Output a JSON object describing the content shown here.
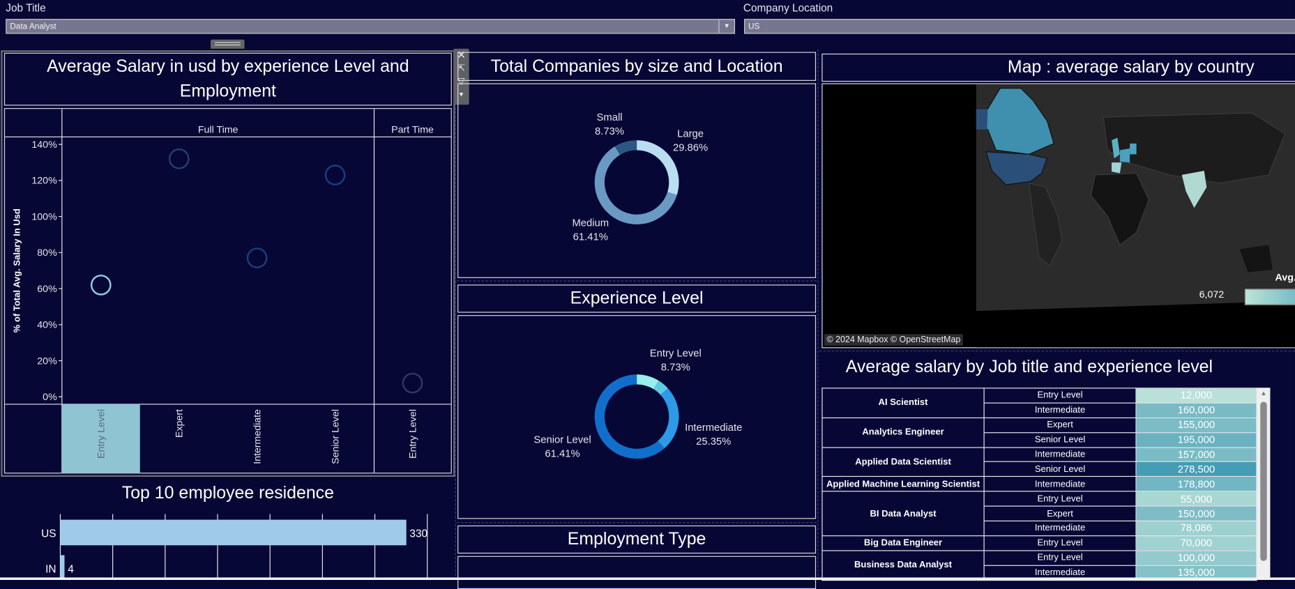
{
  "filters": {
    "job_title": {
      "label": "Job Title",
      "value": "Data Analyst"
    },
    "company_location": {
      "label": "Company Location",
      "value": "US"
    }
  },
  "toolbar": {
    "icons": [
      "close-icon",
      "popout-icon",
      "filter-icon",
      "more-dropdown-icon"
    ]
  },
  "panels": {
    "salary_title": "Average Salary in usd by experience Level and Employment",
    "companies_title": "Total Companies by size and Location",
    "experience_title": "Experience Level",
    "employment_title": "Employment Type",
    "residence_title": "Top 10 employee residence",
    "map_title": "Map : average salary by country",
    "table_title": "Average salary by Job title and experience level"
  },
  "map": {
    "attribution": "© 2024 Mapbox © OpenStreetMap",
    "legend_title": "Avg.",
    "legend_min": "6,072",
    "highlighted_countries": [
      "Canada",
      "United States",
      "United Kingdom",
      "France",
      "Germany",
      "Spain",
      "India"
    ]
  },
  "chart_data": [
    {
      "type": "scatter",
      "ylabel": "% of Total Avg. Salary In Usd",
      "ylim": [
        0,
        140
      ],
      "y_ticks": [
        "0%",
        "20%",
        "40%",
        "60%",
        "80%",
        "100%",
        "120%",
        "140%"
      ],
      "panes": [
        {
          "name": "Full Time",
          "categories": [
            "Entry Level",
            "Expert",
            "Intermediate",
            "Senior Level"
          ]
        },
        {
          "name": "Part Time",
          "categories": [
            "Entry Level"
          ]
        }
      ],
      "points": [
        {
          "pane": "Full Time",
          "x": "Entry Level",
          "y": 62,
          "color": "#8fd3df"
        },
        {
          "pane": "Full Time",
          "x": "Expert",
          "y": 132,
          "color": "#26406e"
        },
        {
          "pane": "Full Time",
          "x": "Intermediate",
          "y": 77,
          "color": "#1b3f7c"
        },
        {
          "pane": "Full Time",
          "x": "Senior Level",
          "y": 123,
          "color": "#193f80"
        },
        {
          "pane": "Part Time",
          "x": "Entry Level",
          "y": 7.6,
          "color": "#2b3b62"
        }
      ],
      "highlighted_category": "Full Time / Entry Level"
    },
    {
      "type": "pie",
      "slices": [
        {
          "label": "Large",
          "value": 29.86,
          "text": "29.86%",
          "color": "#b9def0"
        },
        {
          "label": "Medium",
          "value": 61.41,
          "text": "61.41%",
          "color": "#6a9ac4"
        },
        {
          "label": "Small",
          "value": 8.73,
          "text": "8.73%",
          "color": "#2b5784"
        }
      ]
    },
    {
      "type": "pie",
      "slices": [
        {
          "label": "Entry Level",
          "value": 8.73,
          "text": "8.73%",
          "color": "#98eeea"
        },
        {
          "label": "",
          "value": 4.51,
          "text": "",
          "color": "#5ecbe5"
        },
        {
          "label": "Intermediate",
          "value": 25.35,
          "text": "25.35%",
          "color": "#2d9ae8"
        },
        {
          "label": "Senior Level",
          "value": 61.41,
          "text": "61.41%",
          "color": "#116fcc"
        }
      ]
    },
    {
      "type": "bar",
      "orientation": "horizontal",
      "categories": [
        "US",
        "IN"
      ],
      "values": [
        330,
        4
      ],
      "xlim": [
        0,
        350
      ],
      "grid": true,
      "color": "#9fcbe8"
    }
  ],
  "salary_table": {
    "groups": [
      {
        "job": "AI Scientist",
        "rows": [
          {
            "level": "Entry Level",
            "value": 12000,
            "text": "12,000"
          },
          {
            "level": "Intermediate",
            "value": 160000,
            "text": "160,000"
          }
        ]
      },
      {
        "job": "Analytics Engineer",
        "rows": [
          {
            "level": "Expert",
            "value": 155000,
            "text": "155,000"
          },
          {
            "level": "Senior Level",
            "value": 195000,
            "text": "195,000"
          }
        ]
      },
      {
        "job": "Applied Data Scientist",
        "rows": [
          {
            "level": "Intermediate",
            "value": 157000,
            "text": "157,000"
          },
          {
            "level": "Senior Level",
            "value": 278500,
            "text": "278,500"
          }
        ]
      },
      {
        "job": "Applied Machine Learning Scientist",
        "rows": [
          {
            "level": "Intermediate",
            "value": 178800,
            "text": "178,800"
          }
        ]
      },
      {
        "job": "BI Data Analyst",
        "rows": [
          {
            "level": "Entry Level",
            "value": 55000,
            "text": "55,000"
          },
          {
            "level": "Expert",
            "value": 150000,
            "text": "150,000"
          },
          {
            "level": "Intermediate",
            "value": 78086,
            "text": "78,086"
          }
        ]
      },
      {
        "job": "Big Data Engineer",
        "rows": [
          {
            "level": "Entry Level",
            "value": 70000,
            "text": "70,000"
          }
        ]
      },
      {
        "job": "Business Data Analyst",
        "rows": [
          {
            "level": "Entry Level",
            "value": 100000,
            "text": "100,000"
          },
          {
            "level": "Intermediate",
            "value": 135000,
            "text": "135,000"
          }
        ]
      }
    ]
  }
}
